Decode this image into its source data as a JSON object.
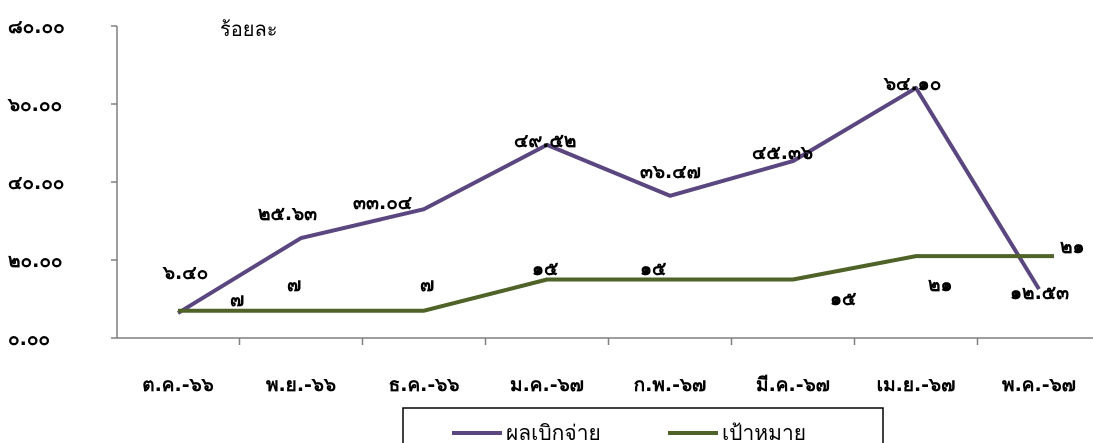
{
  "chart_data": {
    "type": "line",
    "ylabel": "ร้อยละ",
    "ylim": [
      0,
      80
    ],
    "y_ticks": [
      "๐.๐๐",
      "๒๐.๐๐",
      "๔๐.๐๐",
      "๖๐.๐๐",
      "๘๐.๐๐"
    ],
    "categories": [
      "ต.ค.-๖๖",
      "พ.ย.-๖๖",
      "ธ.ค.-๖๖",
      "ม.ค.-๖๗",
      "ก.พ.-๖๗",
      "มี.ค.-๖๗",
      "เม.ย.-๖๗",
      "พ.ค.-๖๗"
    ],
    "legend_position": "bottom",
    "series": [
      {
        "name": "ผลเบิกจ่าย",
        "color": "#5b4780",
        "values": [
          6.4,
          25.63,
          33.04,
          49.52,
          36.47,
          45.36,
          64.1,
          12.53
        ],
        "labels": [
          "๖.๔๐",
          "๒๕.๖๓",
          "๓๓.๐๔",
          "๔๙.๕๒",
          "๓๖.๔๗",
          "๔๕.๓๖",
          "๖๔.๑๐",
          "๑๒.๕๓"
        ]
      },
      {
        "name": "เป้าหมาย",
        "color": "#4f6228",
        "values": [
          7,
          7,
          7,
          15,
          15,
          15,
          21,
          21
        ],
        "labels": [
          "๗",
          "๗",
          "๗",
          "๑๕",
          "๑๕",
          "๑๕",
          "๒๑",
          "๒๑"
        ]
      }
    ]
  }
}
